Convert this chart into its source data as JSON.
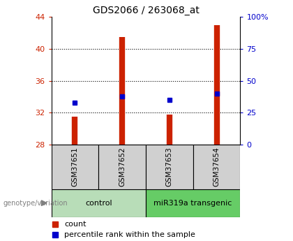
{
  "title": "GDS2066 / 263068_at",
  "samples": [
    "GSM37651",
    "GSM37652",
    "GSM37653",
    "GSM37654"
  ],
  "bar_bottoms": [
    28,
    28,
    28,
    28
  ],
  "bar_tops": [
    31.5,
    41.5,
    31.8,
    43.0
  ],
  "percentile_values": [
    33,
    38,
    35,
    40
  ],
  "ylim_left": [
    28,
    44
  ],
  "ylim_right": [
    0,
    100
  ],
  "yticks_left": [
    28,
    32,
    36,
    40,
    44
  ],
  "yticks_right": [
    0,
    25,
    50,
    75,
    100
  ],
  "bar_color": "#cc2200",
  "percentile_color": "#0000cc",
  "control_color": "#b8ddb8",
  "transgenic_color": "#66cc66",
  "label_box_color": "#d0d0d0",
  "legend_bar_label": "count",
  "legend_pct_label": "percentile rank within the sample",
  "genotype_label": "genotype/variation",
  "background_color": "#ffffff"
}
